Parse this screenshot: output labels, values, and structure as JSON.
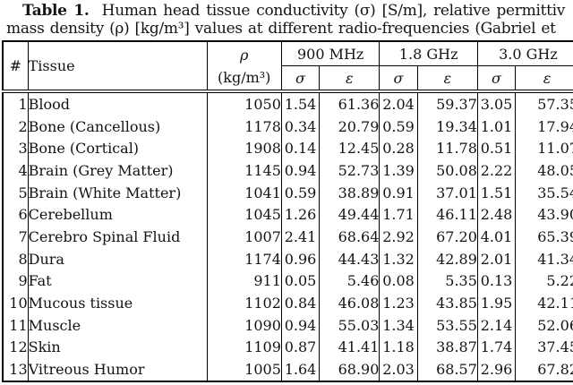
{
  "caption": {
    "label": "Table 1.",
    "line1_rest": "  Human head tissue conductivity (σ) [S/m], relative permittiv",
    "line2": "mass density (ρ) [kg/m³] values at different radio-frequencies (Gabriel et"
  },
  "table": {
    "columns": {
      "index": "#",
      "tissue": "Tissue",
      "density_symbol": "ρ",
      "density_unit": "(kg/m³)",
      "freq_groups": [
        "900 MHz",
        "1.8 GHz",
        "3.0 GHz"
      ],
      "sigma": "σ",
      "epsilon": "ε"
    },
    "rows": [
      [
        "1",
        "Blood",
        "1050",
        "1.54",
        "61.36",
        "2.04",
        "59.37",
        "3.05",
        "57.35"
      ],
      [
        "2",
        "Bone (Cancellous)",
        "1178",
        "0.34",
        "20.79",
        "0.59",
        "19.34",
        "1.01",
        "17.94"
      ],
      [
        "3",
        "Bone (Cortical)",
        "1908",
        "0.14",
        "12.45",
        "0.28",
        "11.78",
        "0.51",
        "11.07"
      ],
      [
        "4",
        "Brain (Grey Matter)",
        "1145",
        "0.94",
        "52.73",
        "1.39",
        "50.08",
        "2.22",
        "48.05"
      ],
      [
        "5",
        "Brain (White Matter)",
        "1041",
        "0.59",
        "38.89",
        "0.91",
        "37.01",
        "1.51",
        "35.54"
      ],
      [
        "6",
        "Cerebellum",
        "1045",
        "1.26",
        "49.44",
        "1.71",
        "46.11",
        "2.48",
        "43.90"
      ],
      [
        "7",
        "Cerebro Spinal Fluid",
        "1007",
        "2.41",
        "68.64",
        "2.92",
        "67.20",
        "4.01",
        "65.39"
      ],
      [
        "8",
        "Dura",
        "1174",
        "0.96",
        "44.43",
        "1.32",
        "42.89",
        "2.01",
        "41.34"
      ],
      [
        "9",
        "Fat",
        "911",
        "0.05",
        "5.46",
        "0.08",
        "5.35",
        "0.13",
        "5.22"
      ],
      [
        "10",
        "Mucous tissue",
        "1102",
        "0.84",
        "46.08",
        "1.23",
        "43.85",
        "1.95",
        "42.11"
      ],
      [
        "11",
        "Muscle",
        "1090",
        "0.94",
        "55.03",
        "1.34",
        "53.55",
        "2.14",
        "52.06"
      ],
      [
        "12",
        "Skin",
        "1109",
        "0.87",
        "41.41",
        "1.18",
        "38.87",
        "1.74",
        "37.45"
      ],
      [
        "13",
        "Vitreous Humor",
        "1005",
        "1.64",
        "68.90",
        "2.03",
        "68.57",
        "2.96",
        "67.82"
      ]
    ]
  }
}
